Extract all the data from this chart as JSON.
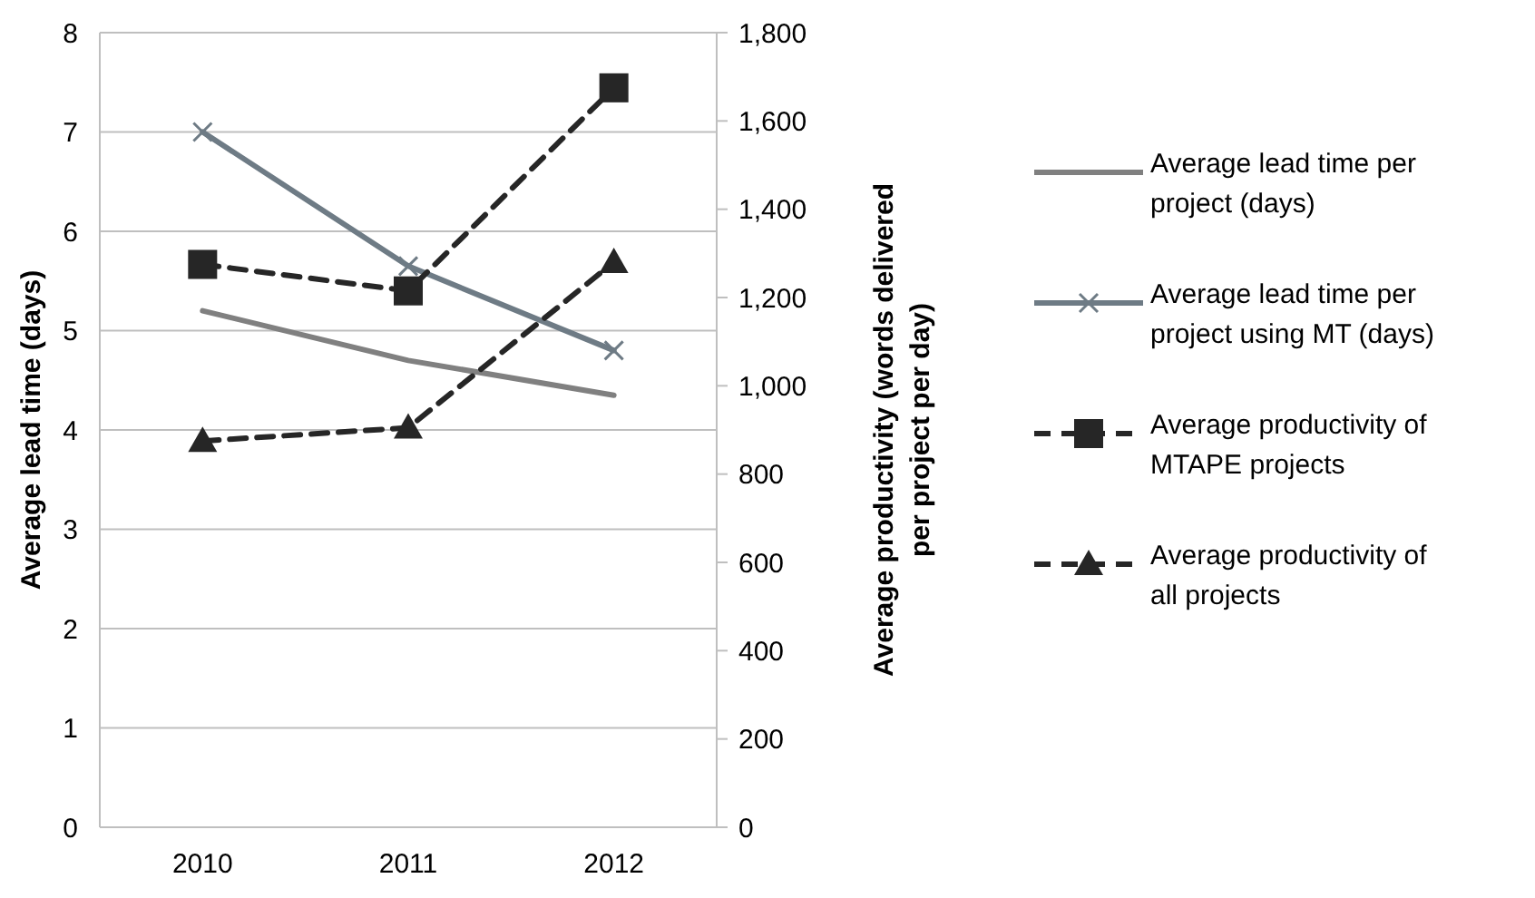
{
  "chart_data": {
    "type": "line",
    "categories": [
      "2010",
      "2011",
      "2012"
    ],
    "ylabel": "Average lead time (days)",
    "y2label": "Average productivity  (words delivered per project per day)",
    "ylim": [
      0,
      8
    ],
    "yticks": [
      0,
      1,
      2,
      3,
      4,
      5,
      6,
      7,
      8
    ],
    "y2lim": [
      0,
      1800
    ],
    "y2ticks": [
      {
        "value": 0,
        "label": "0"
      },
      {
        "value": 200,
        "label": "200"
      },
      {
        "value": 400,
        "label": "400"
      },
      {
        "value": 600,
        "label": "600"
      },
      {
        "value": 800,
        "label": "800"
      },
      {
        "value": 1000,
        "label": "1,000"
      },
      {
        "value": 1200,
        "label": "1,200"
      },
      {
        "value": 1400,
        "label": "1,400"
      },
      {
        "value": 1600,
        "label": "1,600"
      },
      {
        "value": 1800,
        "label": "1,800"
      }
    ],
    "grid": "y",
    "legend": "right",
    "series": [
      {
        "name": "Average lead time per project (days)",
        "color": "#808080",
        "values": [
          5.2,
          4.7,
          4.35
        ],
        "marker": "none",
        "line_style": "solid"
      },
      {
        "name": "Average lead time per project using MT (days)",
        "color": "#6e7b85",
        "values": [
          7.0,
          5.65,
          4.8
        ],
        "marker": "cross",
        "line_style": "solid"
      },
      {
        "name": "Average productivity of MTAPE projects",
        "color": "#262626",
        "values": [
          1275,
          1215,
          1675
        ],
        "axis": "y2",
        "marker": "square",
        "line_style": "dashed"
      },
      {
        "name": "Average productivity of all projects",
        "color": "#262626",
        "values": [
          875,
          905,
          1280
        ],
        "axis": "y2",
        "marker": "triangle",
        "line_style": "dashed"
      }
    ]
  }
}
